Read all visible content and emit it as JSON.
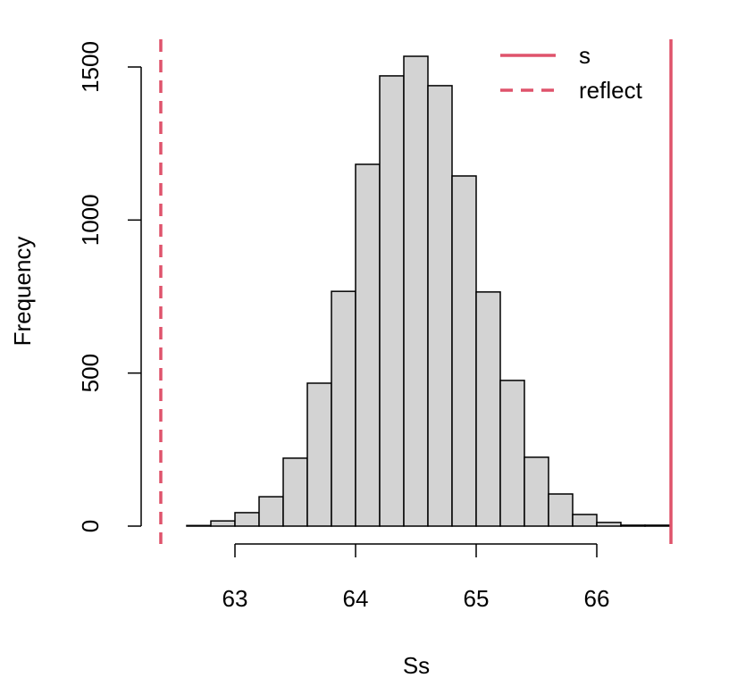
{
  "chart_data": {
    "type": "bar",
    "title": "",
    "xlabel": "Ss",
    "ylabel": "Frequency",
    "bin_edges": [
      62.6,
      62.8,
      63.0,
      63.2,
      63.4,
      63.6,
      63.8,
      64.0,
      64.2,
      64.4,
      64.6,
      64.8,
      65.0,
      65.2,
      65.4,
      65.6,
      65.8,
      66.0,
      66.2,
      66.4,
      66.6
    ],
    "values": [
      2,
      17,
      44,
      96,
      222,
      467,
      767,
      1182,
      1471,
      1535,
      1439,
      1144,
      765,
      476,
      225,
      105,
      38,
      12,
      3,
      3
    ],
    "x_ticks": [
      "63",
      "64",
      "65",
      "66"
    ],
    "y_ticks": [
      "0",
      "500",
      "1000",
      "1500"
    ],
    "bar_color": "#D3D3D3",
    "lines": [
      {
        "name": "s",
        "x": 66.615,
        "style": "solid",
        "color": "#DF536B"
      },
      {
        "name": "reflect",
        "x": 62.385,
        "style": "dashed",
        "color": "#DF536B"
      }
    ],
    "legend_position": "top-right",
    "grid": false
  }
}
